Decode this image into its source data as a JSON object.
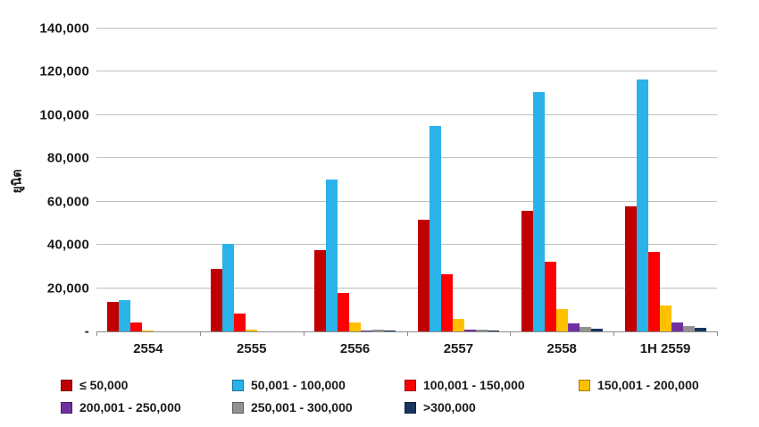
{
  "chart_data": {
    "type": "bar",
    "title": "",
    "ylabel": "ยูนิต",
    "xlabel": "",
    "categories": [
      "2554",
      "2555",
      "2556",
      "2557",
      "2558",
      "1H 2559"
    ],
    "series": [
      {
        "name": "≤ 50,000",
        "color": "#C00000",
        "values": [
          13700,
          28800,
          37500,
          51500,
          55800,
          58000
        ]
      },
      {
        "name": "50,001 - 100,000",
        "color": "#29B3E8",
        "values": [
          14500,
          40600,
          70400,
          95000,
          110500,
          116300
        ]
      },
      {
        "name": "100,001 - 150,000",
        "color": "#FE0000",
        "values": [
          4200,
          8400,
          17600,
          26300,
          32400,
          36600
        ]
      },
      {
        "name": "150,001 - 200,000",
        "color": "#FFC000",
        "values": [
          300,
          700,
          4200,
          5900,
          10400,
          11800
        ]
      },
      {
        "name": "200,001 - 250,000",
        "color": "#7030A0",
        "values": [
          100,
          200,
          300,
          1000,
          3700,
          4300
        ]
      },
      {
        "name": "250,001 - 300,000",
        "color": "#929292",
        "values": [
          100,
          200,
          900,
          800,
          1900,
          2500
        ]
      },
      {
        "name": ">300,000",
        "color": "#17365D",
        "values": [
          50,
          100,
          300,
          400,
          1200,
          1500
        ]
      }
    ],
    "ylim": [
      0,
      140000
    ],
    "ytick_step": 20000,
    "ytick_labels": [
      "-",
      "20,000",
      "40,000",
      "60,000",
      "80,000",
      "100,000",
      "120,000",
      "140,000"
    ],
    "grid": true,
    "legend_position": "bottom"
  }
}
